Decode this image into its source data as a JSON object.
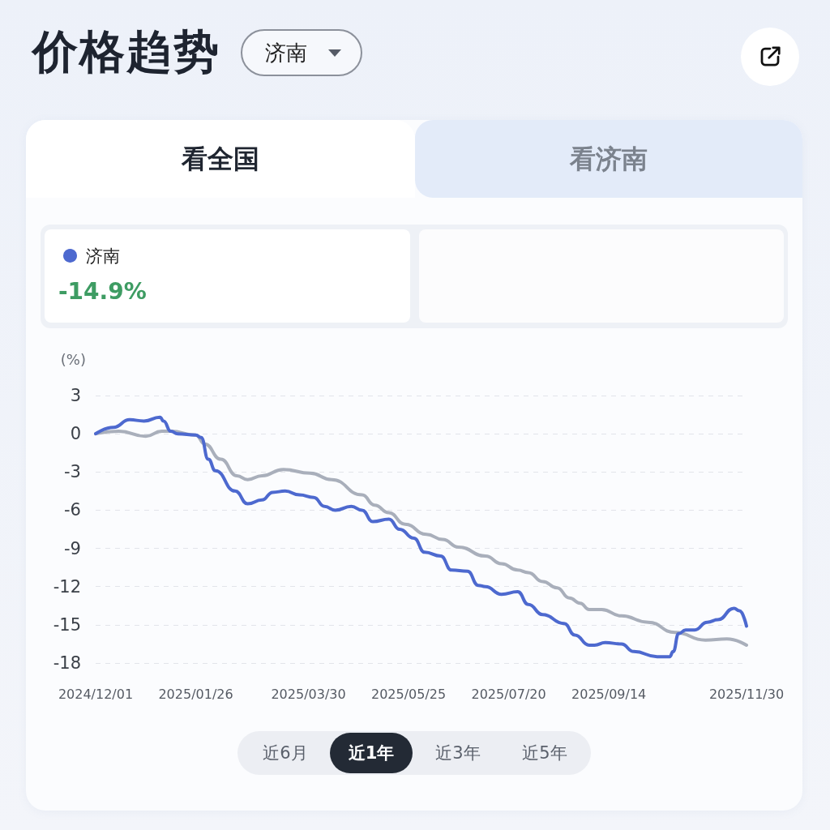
{
  "chart_data": {
    "type": "line",
    "title": "价格趋势",
    "ylabel": "(%)",
    "annotations": [
      "济南",
      "看全国",
      "看济南",
      "-14.9%",
      "近6月",
      "近1年",
      "近3年",
      "近5年"
    ],
    "xlim": [
      "2024-12-01",
      "2025-11-30"
    ],
    "xticks": [
      {
        "value": "2024-12-01",
        "label": "2024/12/01"
      },
      {
        "value": "2025-01-26",
        "label": "2025/01/26"
      },
      {
        "value": "2025-03-30",
        "label": "2025/03/30"
      },
      {
        "value": "2025-05-25",
        "label": "2025/05/25"
      },
      {
        "value": "2025-07-20",
        "label": "2025/07/20"
      },
      {
        "value": "2025-09-14",
        "label": "2025/09/14"
      },
      {
        "value": "2025-11-30",
        "label": "2025/11/30"
      }
    ],
    "ylim": [
      -18,
      3
    ],
    "yticks": [
      -18,
      -15,
      -12,
      -9,
      -6,
      -3,
      0,
      3
    ],
    "grid": "y",
    "legend": "top left",
    "series": [
      {
        "color": "#a9afbb",
        "x": [
          "2024-12-01",
          "2024-12-14",
          "2024-12-29",
          "2025-01-07",
          "2025-01-12",
          "2025-01-26",
          "2025-01-31",
          "2025-02-09",
          "2025-02-18",
          "2025-02-24",
          "2025-03-04",
          "2025-03-16",
          "2025-03-31",
          "2025-04-12",
          "2025-04-29",
          "2025-05-06",
          "2025-05-14",
          "2025-05-23",
          "2025-06-04",
          "2025-06-13",
          "2025-06-22",
          "2025-07-07",
          "2025-07-16",
          "2025-07-25",
          "2025-07-31",
          "2025-08-08",
          "2025-08-16",
          "2025-08-23",
          "2025-08-29",
          "2025-09-03",
          "2025-09-10",
          "2025-09-21",
          "2025-10-06",
          "2025-10-21",
          "2025-11-07",
          "2025-11-19",
          "2025-11-30"
        ],
        "values": [
          0,
          0.2,
          -0.2,
          0.2,
          0.2,
          -0.1,
          -0.8,
          -2.0,
          -3.3,
          -3.6,
          -3.3,
          -2.8,
          -3.1,
          -3.6,
          -4.8,
          -5.6,
          -6.2,
          -7.1,
          -7.9,
          -8.3,
          -8.9,
          -9.6,
          -10.2,
          -10.7,
          -10.9,
          -11.6,
          -12.1,
          -12.9,
          -13.3,
          -13.8,
          -13.8,
          -14.3,
          -14.8,
          -15.6,
          -16.2,
          -16.1,
          -16.6
        ]
      },
      {
        "name": "济南",
        "color": "#4d69cf",
        "x": [
          "2024-12-01",
          "2024-12-11",
          "2024-12-20",
          "2024-12-28",
          "2025-01-06",
          "2025-01-08",
          "2025-01-12",
          "2025-01-16",
          "2025-01-26",
          "2025-01-29",
          "2025-02-02",
          "2025-02-06",
          "2025-02-17",
          "2025-02-24",
          "2025-03-04",
          "2025-03-10",
          "2025-03-17",
          "2025-03-25",
          "2025-04-02",
          "2025-04-08",
          "2025-04-14",
          "2025-04-23",
          "2025-04-29",
          "2025-05-05",
          "2025-05-14",
          "2025-05-20",
          "2025-05-28",
          "2025-06-03",
          "2025-06-12",
          "2025-06-18",
          "2025-06-27",
          "2025-07-03",
          "2025-07-07",
          "2025-07-16",
          "2025-07-25",
          "2025-07-31",
          "2025-08-08",
          "2025-08-20",
          "2025-08-26",
          "2025-09-03",
          "2025-09-06",
          "2025-09-12",
          "2025-09-21",
          "2025-09-28",
          "2025-10-11",
          "2025-10-18",
          "2025-10-20",
          "2025-10-23",
          "2025-10-27",
          "2025-11-01",
          "2025-11-08",
          "2025-11-14",
          "2025-11-23",
          "2025-11-26",
          "2025-11-30"
        ],
        "values": [
          0,
          0.5,
          1.1,
          1.0,
          1.3,
          1.0,
          0.2,
          0.0,
          -0.1,
          -0.3,
          -2.0,
          -2.9,
          -4.5,
          -5.5,
          -5.2,
          -4.6,
          -4.5,
          -4.8,
          -5.0,
          -5.7,
          -6.0,
          -5.7,
          -6.0,
          -6.9,
          -6.7,
          -7.5,
          -8.2,
          -9.3,
          -9.6,
          -10.7,
          -10.8,
          -11.9,
          -12.0,
          -12.6,
          -12.4,
          -13.4,
          -14.2,
          -14.9,
          -15.8,
          -16.6,
          -16.6,
          -16.4,
          -16.5,
          -17.1,
          -17.5,
          -17.5,
          -17.1,
          -15.7,
          -15.4,
          -15.4,
          -14.8,
          -14.6,
          -13.7,
          -13.9,
          -15.1
        ]
      }
    ]
  }
}
